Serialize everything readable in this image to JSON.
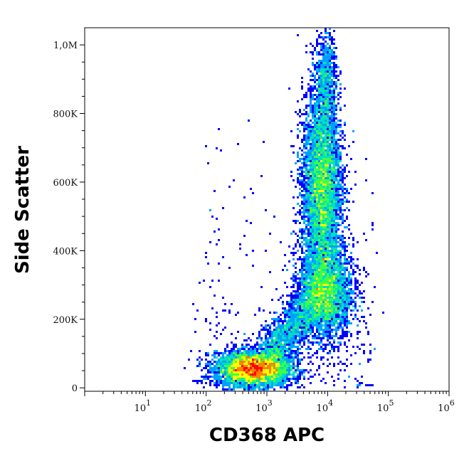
{
  "chart_data": {
    "type": "scatter",
    "subtype": "flow-cytometry density dot plot",
    "title": "",
    "xlabel": "CD368 APC",
    "ylabel": "Side Scatter",
    "x_scale": "log",
    "y_scale": "linear",
    "xlim": [
      1,
      1000000
    ],
    "ylim": [
      -10000,
      1050000
    ],
    "x_ticks": [
      {
        "value": 10,
        "base": "10",
        "exp": "1"
      },
      {
        "value": 100,
        "base": "10",
        "exp": "2"
      },
      {
        "value": 1000,
        "base": "10",
        "exp": "3"
      },
      {
        "value": 10000,
        "base": "10",
        "exp": "4"
      },
      {
        "value": 100000,
        "base": "10",
        "exp": "5"
      },
      {
        "value": 1000000,
        "base": "10",
        "exp": "6"
      }
    ],
    "y_ticks": [
      {
        "value": 0,
        "label": "0"
      },
      {
        "value": 200000,
        "label": "200K"
      },
      {
        "value": 400000,
        "label": "400K"
      },
      {
        "value": 600000,
        "label": "600K"
      },
      {
        "value": 800000,
        "label": "800K"
      },
      {
        "value": 1000000,
        "label": "1,0M"
      }
    ],
    "color_scale": [
      "#0000ff",
      "#00a0ff",
      "#00e0c0",
      "#40ff40",
      "#ffff00",
      "#ff8000",
      "#ff0000"
    ],
    "grid": false,
    "legend": "none",
    "populations": [
      {
        "x_center": 600,
        "y_center": 55000,
        "x_spread_log10": 0.3,
        "y_spread": 25000,
        "peak_density": "red"
      },
      {
        "x_center": 8000,
        "y_center": 580000,
        "x_spread_log10": 0.16,
        "y_spread": 140000,
        "peak_density": "green"
      },
      {
        "x_center": 9500,
        "y_center": 280000,
        "x_spread_log10": 0.22,
        "y_spread": 70000,
        "peak_density": "cyan"
      }
    ]
  }
}
